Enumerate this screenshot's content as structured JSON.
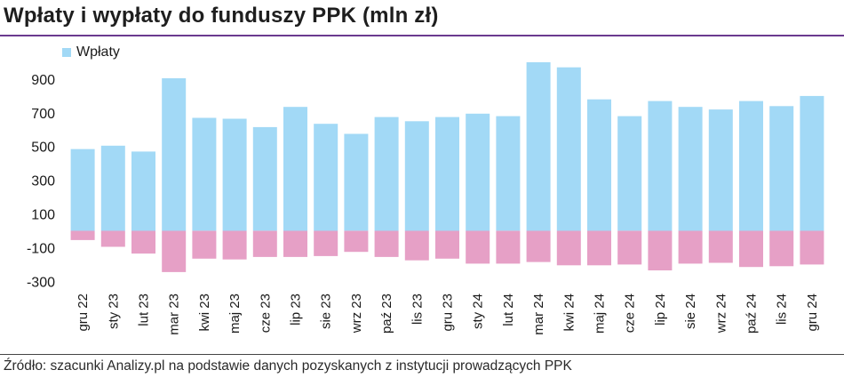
{
  "title": "Wpłaty i wypłaty do funduszy PPK (mln zł)",
  "source": "Źródło: szacunki Analizy.pl na podstawie danych pozyskanych z instytucji prowadzących PPK",
  "colors": {
    "inflow": "#a2d9f6",
    "outflow": "#e6a0c6",
    "rule": "#6b3a8f"
  },
  "chart_data": {
    "type": "bar",
    "categories": [
      "gru 22",
      "sty 23",
      "lut 23",
      "mar 23",
      "kwi 23",
      "maj 23",
      "cze 23",
      "lip 23",
      "sie 23",
      "wrz 23",
      "paź 23",
      "lis 23",
      "gru 23",
      "sty 24",
      "lut 24",
      "mar 24",
      "kwi 24",
      "maj 24",
      "cze 24",
      "lip 24",
      "sie 24",
      "wrz 24",
      "paź 24",
      "lis 24",
      "gru 24"
    ],
    "series": [
      {
        "name": "Wpłaty",
        "color": "#a2d9f6",
        "values": [
          485,
          505,
          470,
          905,
          670,
          665,
          615,
          735,
          635,
          575,
          675,
          650,
          675,
          695,
          680,
          1000,
          970,
          780,
          680,
          770,
          735,
          720,
          770,
          740,
          800
        ]
      },
      {
        "name": "",
        "color": "#e6a0c6",
        "values": [
          -55,
          -95,
          -135,
          -245,
          -165,
          -170,
          -155,
          -155,
          -150,
          -125,
          -155,
          -175,
          -165,
          -195,
          -195,
          -185,
          -205,
          -205,
          -200,
          -235,
          -195,
          -190,
          -215,
          -210,
          -200
        ]
      }
    ],
    "yticks": [
      900,
      700,
      500,
      300,
      100,
      -100,
      -300
    ],
    "ylim": [
      -330,
      1000
    ],
    "legend": "top-left",
    "grid": false,
    "xlabel": "",
    "ylabel": ""
  }
}
